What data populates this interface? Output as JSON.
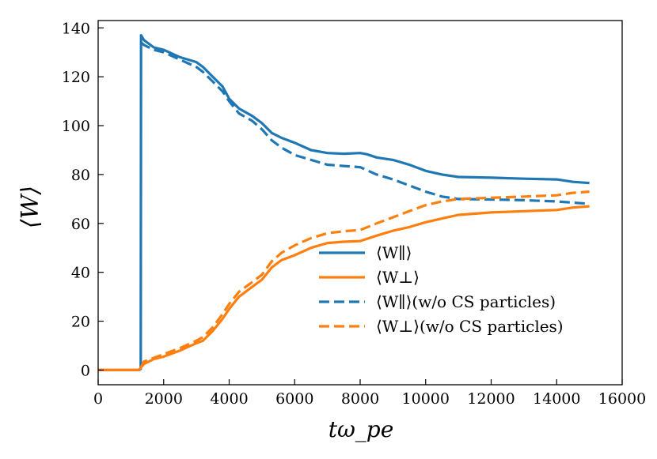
{
  "chart_data": {
    "type": "line",
    "xlabel": "tω_pe",
    "ylabel": "⟨W⟩",
    "xlim": [
      0,
      16000
    ],
    "ylim": [
      -6,
      143
    ],
    "xticks": [
      0,
      2000,
      4000,
      6000,
      8000,
      10000,
      12000,
      14000,
      16000
    ],
    "yticks": [
      0,
      20,
      40,
      60,
      80,
      100,
      120,
      140
    ],
    "legend_position": "lower-right",
    "series": [
      {
        "name": "⟨W∥⟩",
        "color": "#1f77b4",
        "style": "solid",
        "x": [
          0,
          1250,
          1300,
          1310,
          1400,
          1700,
          2000,
          2500,
          3000,
          3200,
          3500,
          3800,
          4000,
          4300,
          4700,
          5000,
          5300,
          5600,
          6000,
          6500,
          7000,
          7500,
          8000,
          8200,
          8500,
          9000,
          9500,
          10000,
          10500,
          11000,
          12000,
          13000,
          14000,
          14500,
          15000
        ],
        "values": [
          0,
          0,
          0.5,
          137,
          135,
          132,
          131,
          128,
          126,
          124,
          120,
          116,
          111,
          107,
          104,
          101,
          97,
          95,
          93,
          90,
          88.8,
          88.5,
          88.8,
          88.3,
          87,
          86,
          84,
          81.5,
          80,
          79,
          78.7,
          78.3,
          78,
          77,
          76.5
        ]
      },
      {
        "name": "⟨W⊥⟩",
        "color": "#ff7f0e",
        "style": "solid",
        "x": [
          0,
          1250,
          1300,
          1400,
          1700,
          2000,
          2500,
          3000,
          3200,
          3500,
          3800,
          4000,
          4300,
          4700,
          5000,
          5300,
          5600,
          6000,
          6500,
          7000,
          7500,
          8000,
          8500,
          9000,
          9500,
          10000,
          10500,
          11000,
          12000,
          13000,
          14000,
          14500,
          15000
        ],
        "values": [
          0,
          0,
          1,
          2.5,
          4.5,
          5.5,
          8,
          11,
          12,
          16,
          21,
          25,
          30,
          34,
          37,
          42,
          45,
          47,
          50,
          52,
          52.5,
          52.8,
          55,
          57,
          58.5,
          60.5,
          62,
          63.5,
          64.5,
          65,
          65.5,
          66.5,
          67
        ]
      },
      {
        "name": "⟨W∥⟩(w/o CS particles)",
        "color": "#1f77b4",
        "style": "dashed",
        "x": [
          1310,
          1400,
          1700,
          2000,
          2500,
          3000,
          3200,
          3500,
          3800,
          4000,
          4300,
          4700,
          5000,
          5300,
          5600,
          6000,
          6500,
          7000,
          7500,
          8000,
          8500,
          9000,
          9500,
          10000,
          10500,
          11000,
          12000,
          13000,
          14000,
          14500,
          15000
        ],
        "values": [
          134,
          133,
          131,
          130,
          127,
          124,
          122,
          118,
          114,
          110,
          105,
          102,
          98.5,
          94,
          91,
          88,
          86,
          84,
          83.5,
          83,
          80,
          78,
          75.5,
          73,
          71,
          70,
          69.8,
          69.5,
          69,
          68.5,
          68
        ]
      },
      {
        "name": "⟨W⊥⟩(w/o CS particles)",
        "color": "#ff7f0e",
        "style": "dashed",
        "x": [
          1300,
          1400,
          1700,
          2000,
          2500,
          3000,
          3200,
          3500,
          3800,
          4000,
          4300,
          4700,
          5000,
          5300,
          5600,
          6000,
          6500,
          7000,
          7500,
          8000,
          8500,
          9000,
          9500,
          10000,
          10500,
          11000,
          12000,
          13000,
          14000,
          14500,
          15000
        ],
        "values": [
          1,
          3.5,
          5,
          6.5,
          9,
          12,
          13.5,
          17.5,
          23,
          27,
          32,
          36,
          39,
          44.5,
          48,
          51,
          54,
          56,
          56.8,
          57.3,
          60,
          62.5,
          65,
          67.5,
          69,
          70,
          70.5,
          71,
          71.5,
          72.5,
          73
        ]
      }
    ]
  }
}
